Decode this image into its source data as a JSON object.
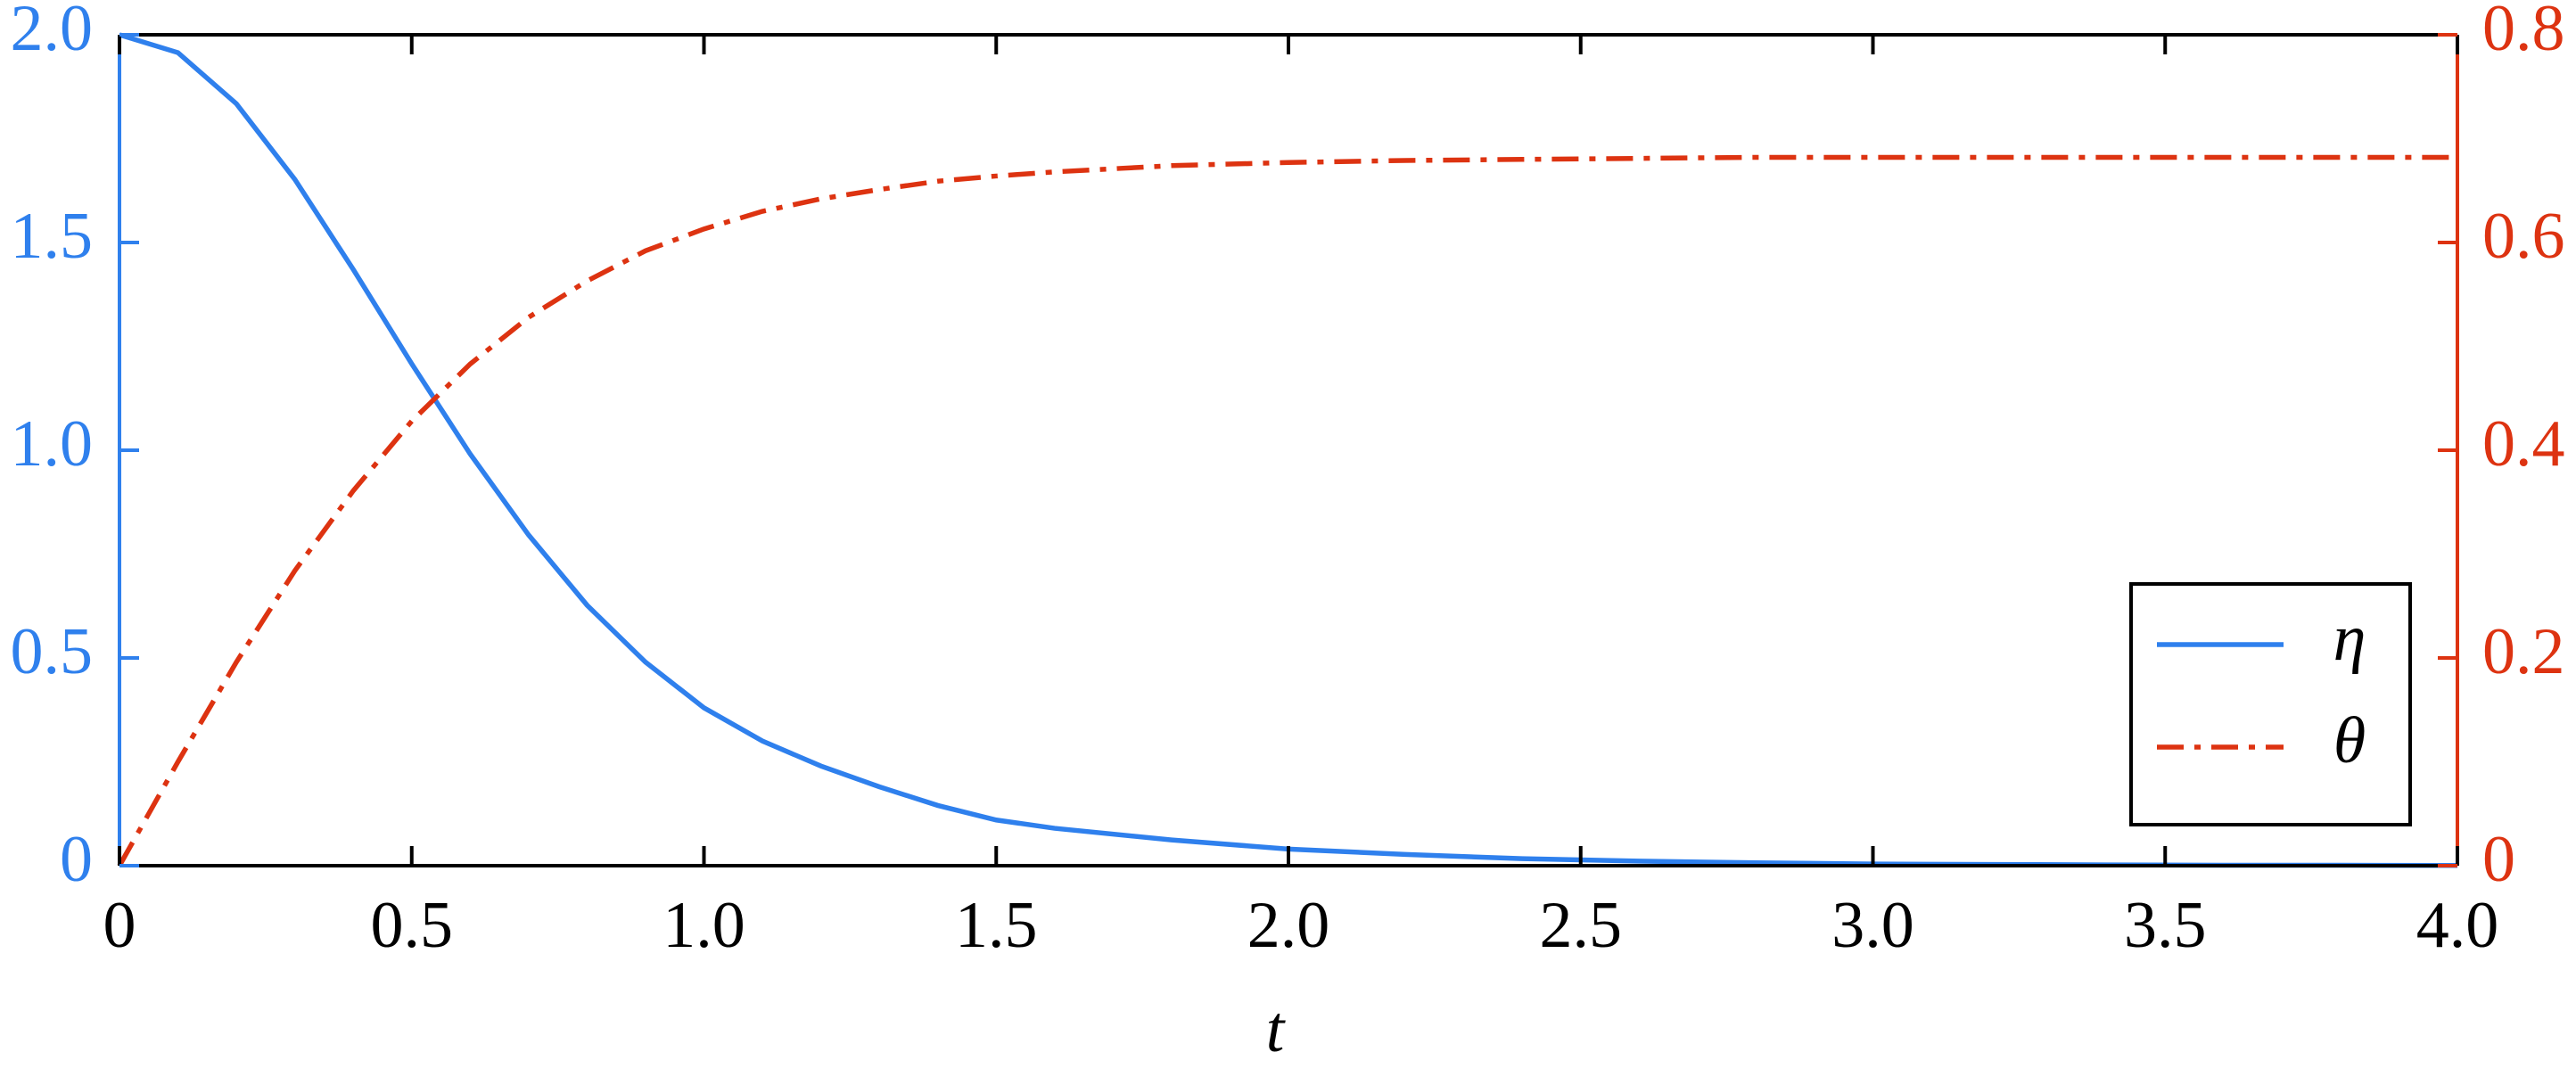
{
  "chart_data": {
    "type": "line",
    "x_label": "t",
    "x": [
      0,
      0.1,
      0.2,
      0.3,
      0.4,
      0.5,
      0.6,
      0.7,
      0.8,
      0.9,
      1.0,
      1.1,
      1.2,
      1.3,
      1.4,
      1.5,
      1.6,
      1.8,
      2.0,
      2.2,
      2.4,
      2.6,
      2.8,
      3.0,
      3.2,
      3.4,
      3.6,
      3.8,
      4.0
    ],
    "series": [
      {
        "name": "η",
        "color": "#2f80ed",
        "linestyle": "solid",
        "values": [
          2,
          1.957,
          1.834,
          1.652,
          1.435,
          1.208,
          0.991,
          0.796,
          0.627,
          0.49,
          0.38,
          0.3,
          0.24,
          0.19,
          0.145,
          0.11,
          0.09,
          0.062,
          0.04,
          0.027,
          0.017,
          0.011,
          0.007,
          0.004,
          0.003,
          0.002,
          0.001,
          0.001,
          0.0005
        ]
      },
      {
        "name": "θ",
        "color": "#dd3311",
        "linestyle": "dashdot",
        "axis": "y2",
        "values": [
          0,
          0.1,
          0.196,
          0.284,
          0.361,
          0.428,
          0.483,
          0.528,
          0.563,
          0.592,
          0.613,
          0.63,
          0.642,
          0.651,
          0.659,
          0.664,
          0.668,
          0.674,
          0.677,
          0.679,
          0.68,
          0.681,
          0.682,
          0.682,
          0.682,
          0.682,
          0.682,
          0.682,
          0.682
        ]
      }
    ],
    "xlim": [
      0,
      4
    ],
    "xticks": [
      0,
      0.5,
      {
        "value": 1,
        "label": "1.0"
      },
      1.5,
      {
        "value": 2,
        "label": "2.0"
      },
      2.5,
      {
        "value": 3,
        "label": "3.0"
      },
      3.5,
      {
        "value": 4,
        "label": "4.0"
      }
    ],
    "ylim": [
      0,
      2
    ],
    "yticks": [
      0,
      0.5,
      {
        "value": 1,
        "label": "1.0"
      },
      1.5,
      {
        "value": 2,
        "label": "2.0"
      }
    ],
    "y2lim": [
      0,
      0.8
    ],
    "y2ticks": [
      0,
      0.2,
      0.4,
      0.6,
      0.8
    ],
    "legend": "lower right",
    "grid": false
  }
}
